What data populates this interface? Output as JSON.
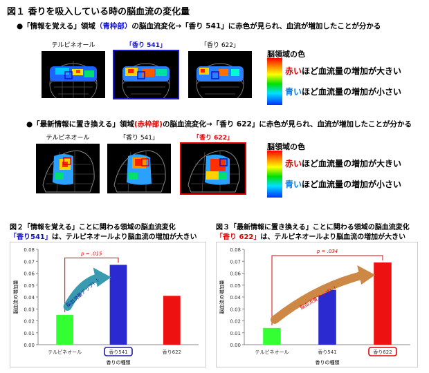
{
  "title": "図１ 香りを吸入している時の脳血流の変化量",
  "section1": {
    "bullet_pre": "●「情報を覚える」領域",
    "bullet_frame": "（青枠部）",
    "bullet_post": "の脳血流変化→「香り 541」に赤色が見られ、血流が増加したことが分かる",
    "labels": [
      "テルピネオール",
      "「香り 541」",
      "「香り 622」"
    ]
  },
  "section2": {
    "bullet_pre": "●「最新情報に置き換える」領域",
    "bullet_frame": "(赤枠部)",
    "bullet_post": "の脳血流変化→「香り 622」に赤色が見られ、血流が増加したことが分かる",
    "labels": [
      "テルピネオール",
      "「香り 541」",
      "「香り 622」"
    ]
  },
  "scale": {
    "title": "脳領域の色",
    "red_word": "赤い",
    "red_rest": "ほど血流量の増加が大きい",
    "blue_word": "青い",
    "blue_rest": "ほど血流量の増加が小さい"
  },
  "fig2": {
    "caption_line1": "図２「情報を覚える」ことに関わる領域の脳血流変化",
    "caption_hl": "「香り541」",
    "caption_rest": "は、テルピネオールより脳血流の増加が大きい",
    "arrow_text": "脳血流量アップ！！"
  },
  "fig3": {
    "caption_line1": "図３「最新情報に置き換える」ことに関わる領域の脳血流変化",
    "caption_hl": "「香り 622」",
    "caption_rest": "は、テルピネオールより脳血流の増加が大きい",
    "arrow_text": "脳血流量アップ！！"
  },
  "chart_data": [
    {
      "type": "bar",
      "categories": [
        "テルピネオール",
        "香り541",
        "香り622"
      ],
      "values": [
        0.025,
        0.067,
        0.041
      ],
      "colors": [
        "#33ff33",
        "#2a2ad0",
        "#ee1111"
      ],
      "highlight_index": 1,
      "highlight_color": "#1a1aa0",
      "ylabel": "脳血流の増加量",
      "xlabel": "香りの種類",
      "ylim": [
        0,
        0.08
      ],
      "yticks": [
        "0.00",
        "0.01",
        "0.02",
        "0.03",
        "0.04",
        "0.05",
        "0.06",
        "0.07",
        "0.08"
      ],
      "annotation": "p = .015",
      "compare": [
        0,
        1
      ],
      "arrow_color": "#3a9ab0"
    },
    {
      "type": "bar",
      "categories": [
        "テルピネオール",
        "香り541",
        "香り622"
      ],
      "values": [
        0.014,
        0.046,
        0.069
      ],
      "colors": [
        "#33ff33",
        "#2a2ad0",
        "#ee1111"
      ],
      "highlight_index": 2,
      "highlight_color": "#e00000",
      "ylabel": "脳血流の増加量",
      "xlabel": "香りの種類",
      "ylim": [
        0,
        0.08
      ],
      "yticks": [
        "0.00",
        "0.01",
        "0.02",
        "0.03",
        "0.04",
        "0.05",
        "0.06",
        "0.07",
        "0.08"
      ],
      "annotation": "p = .034",
      "compare": [
        0,
        2
      ],
      "arrow_color": "#cc8844"
    }
  ]
}
